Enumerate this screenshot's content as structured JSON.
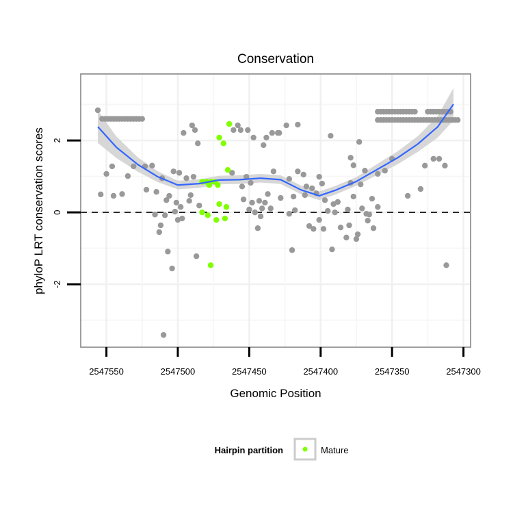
{
  "chart_data": {
    "type": "scatter",
    "title": "Conservation",
    "xlabel": "Genomic Position",
    "ylabel": "phyloP LRT conservation scores",
    "xlim": [
      2547568,
      2547295
    ],
    "x_reversed": true,
    "ylim": [
      -3.75,
      3.85
    ],
    "x_ticks": [
      2547550,
      2547500,
      2547450,
      2547400,
      2547350,
      2547300
    ],
    "x_tick_labels": [
      "2547550",
      "2547500",
      "2547450",
      "2547400",
      "2547350",
      "2547300"
    ],
    "y_ticks": [
      -2,
      0,
      2
    ],
    "y_tick_labels": [
      "-2",
      "0",
      "2"
    ],
    "grid": true,
    "reference_line": {
      "y": 0,
      "style": "dashed"
    },
    "legend": {
      "title": "Hairpin partition",
      "entries": [
        "Mature"
      ],
      "placement": "bottom"
    },
    "colors": {
      "other": "#999999",
      "mature": "#7FFF00",
      "smooth": "#3366FF",
      "ribbon": "#D3D3D3"
    },
    "series": [
      {
        "name": "Other",
        "color": "#999999",
        "points": [
          [
            2547556,
            2.84
          ],
          [
            2547546,
            1.28
          ],
          [
            2547550,
            1.07
          ],
          [
            2547554,
            0.5
          ],
          [
            2547545,
            0.46
          ],
          [
            2547539,
            0.51
          ],
          [
            2547535,
            1.01
          ],
          [
            2547531,
            1.28
          ],
          [
            2547523,
            1.28
          ],
          [
            2547518,
            1.3
          ],
          [
            2547522,
            0.63
          ],
          [
            2547515,
            0.57
          ],
          [
            2547511,
            0.95
          ],
          [
            2547503,
            1.14
          ],
          [
            2547499,
            1.1
          ],
          [
            2547506,
            0.46
          ],
          [
            2547508,
            0.34
          ],
          [
            2547501,
            0.27
          ],
          [
            2547498,
            0.15
          ],
          [
            2547502,
            0.02
          ],
          [
            2547509,
            -0.08
          ],
          [
            2547516,
            -0.06
          ],
          [
            2547500,
            -0.21
          ],
          [
            2547497,
            -0.17
          ],
          [
            2547512,
            -0.36
          ],
          [
            2547513,
            -0.55
          ],
          [
            2547507,
            -1.09
          ],
          [
            2547504,
            -1.56
          ],
          [
            2547510,
            -3.41
          ],
          [
            2547496,
            2.21
          ],
          [
            2547490,
            2.42
          ],
          [
            2547488,
            2.29
          ],
          [
            2547486,
            1.92
          ],
          [
            2547494,
            0.95
          ],
          [
            2547489,
            0.99
          ],
          [
            2547491,
            0.48
          ],
          [
            2547492,
            0.32
          ],
          [
            2547485,
            0.19
          ],
          [
            2547487,
            -1.22
          ],
          [
            2547458,
            2.42
          ],
          [
            2547461,
            2.29
          ],
          [
            2547456,
            2.29
          ],
          [
            2547451,
            2.29
          ],
          [
            2547447,
            2.08
          ],
          [
            2547440,
            1.87
          ],
          [
            2547438,
            2.08
          ],
          [
            2547434,
            2.21
          ],
          [
            2547430,
            2.21
          ],
          [
            2547462,
            1.1
          ],
          [
            2547455,
            0.72
          ],
          [
            2547452,
            0.99
          ],
          [
            2547449,
            0.82
          ],
          [
            2547454,
            0.36
          ],
          [
            2547448,
            0.27
          ],
          [
            2547443,
            0.32
          ],
          [
            2547439,
            0.27
          ],
          [
            2547437,
            0.51
          ],
          [
            2547450,
            0.08
          ],
          [
            2547446,
            0.0
          ],
          [
            2547441,
            0.11
          ],
          [
            2547442,
            -0.11
          ],
          [
            2547444,
            -0.44
          ],
          [
            2547435,
            0.11
          ],
          [
            2547433,
            1.14
          ],
          [
            2547424,
            2.42
          ],
          [
            2547416,
            2.44
          ],
          [
            2547429,
            2.21
          ],
          [
            2547393,
            2.13
          ],
          [
            2547373,
            1.96
          ],
          [
            2547379,
            1.52
          ],
          [
            2547377,
            1.31
          ],
          [
            2547369,
            1.16
          ],
          [
            2547355,
            1.16
          ],
          [
            2547350,
            1.49
          ],
          [
            2547321,
            1.49
          ],
          [
            2547317,
            1.49
          ],
          [
            2547327,
            1.3
          ],
          [
            2547313,
            1.3
          ],
          [
            2547416,
            1.14
          ],
          [
            2547412,
            1.05
          ],
          [
            2547422,
            0.93
          ],
          [
            2547401,
            0.99
          ],
          [
            2547399,
            0.8
          ],
          [
            2547410,
            0.72
          ],
          [
            2547406,
            0.67
          ],
          [
            2547411,
            0.48
          ],
          [
            2547403,
            0.53
          ],
          [
            2547397,
            0.34
          ],
          [
            2547391,
            0.23
          ],
          [
            2547388,
            0.29
          ],
          [
            2547428,
            0.4
          ],
          [
            2547419,
            0.44
          ],
          [
            2547379,
            0.82
          ],
          [
            2547372,
            0.78
          ],
          [
            2547360,
            1.07
          ],
          [
            2547377,
            0.44
          ],
          [
            2547364,
            0.38
          ],
          [
            2547360,
            0.15
          ],
          [
            2547339,
            0.46
          ],
          [
            2547330,
            0.65
          ],
          [
            2547418,
            0.06
          ],
          [
            2547422,
            -0.04
          ],
          [
            2547395,
            0.04
          ],
          [
            2547390,
            0.0
          ],
          [
            2547381,
            0.08
          ],
          [
            2547371,
            0.11
          ],
          [
            2547368,
            -0.04
          ],
          [
            2547366,
            -0.06
          ],
          [
            2547367,
            -0.23
          ],
          [
            2547401,
            -0.21
          ],
          [
            2547408,
            -0.38
          ],
          [
            2547405,
            -0.46
          ],
          [
            2547398,
            -0.46
          ],
          [
            2547386,
            -0.42
          ],
          [
            2547380,
            -0.36
          ],
          [
            2547363,
            -0.44
          ],
          [
            2547374,
            -0.61
          ],
          [
            2547375,
            -0.74
          ],
          [
            2547382,
            -0.7
          ],
          [
            2547420,
            -1.05
          ],
          [
            2547392,
            -1.03
          ],
          [
            2547312,
            -1.47
          ]
        ],
        "runs": [
          {
            "x_from": 2547553,
            "x_to": 2547524,
            "step": 2,
            "y": 2.6
          },
          {
            "x_from": 2547360,
            "x_to": 2547333,
            "step": 2,
            "y": 2.8
          },
          {
            "x_from": 2547325,
            "x_to": 2547308,
            "step": 2,
            "y": 2.8
          },
          {
            "x_from": 2547360,
            "x_to": 2547304,
            "step": 2,
            "y": 2.57
          }
        ]
      },
      {
        "name": "Mature",
        "color": "#7FFF00",
        "points": [
          [
            2547464,
            2.46
          ],
          [
            2547471,
            2.08
          ],
          [
            2547468,
            1.92
          ],
          [
            2547465,
            1.18
          ],
          [
            2547483,
            0.85
          ],
          [
            2547480,
            0.85
          ],
          [
            2547477,
            0.85
          ],
          [
            2547474,
            0.85
          ],
          [
            2547478,
            0.76
          ],
          [
            2547472,
            0.76
          ],
          [
            2547471,
            0.23
          ],
          [
            2547466,
            0.15
          ],
          [
            2547483,
            0.0
          ],
          [
            2547479,
            -0.08
          ],
          [
            2547473,
            -0.21
          ],
          [
            2547467,
            -0.17
          ],
          [
            2547477,
            -1.47
          ]
        ]
      }
    ],
    "smooth": {
      "x": [
        2547556,
        2547543,
        2547528,
        2547514,
        2547500,
        2547485,
        2547471,
        2547457,
        2547442,
        2547428,
        2547414,
        2547401,
        2547390,
        2547375,
        2547361,
        2547346,
        2547332,
        2547318,
        2547307
      ],
      "y": [
        2.38,
        1.81,
        1.33,
        0.99,
        0.76,
        0.8,
        0.9,
        0.91,
        0.95,
        0.91,
        0.63,
        0.46,
        0.61,
        0.86,
        1.18,
        1.52,
        1.9,
        2.38,
        3.01
      ],
      "se": [
        0.45,
        0.3,
        0.2,
        0.15,
        0.12,
        0.12,
        0.12,
        0.12,
        0.12,
        0.12,
        0.12,
        0.12,
        0.12,
        0.12,
        0.15,
        0.18,
        0.22,
        0.3,
        0.45
      ]
    }
  }
}
